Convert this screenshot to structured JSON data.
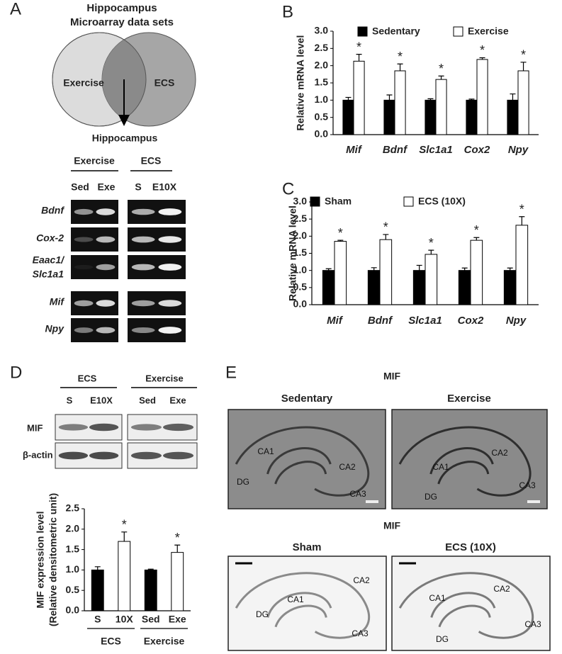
{
  "panel_labels": [
    "A",
    "B",
    "C",
    "D",
    "E"
  ],
  "panel_a": {
    "title": [
      "Hippocampus",
      "Microarray data sets"
    ],
    "venn": [
      "Exercise",
      "ECS"
    ],
    "result": "Hippocampus",
    "groups": [
      "Exercise",
      "ECS"
    ],
    "lanes": [
      "Sed",
      "Exe",
      "S",
      "E10X"
    ],
    "genes": [
      "Bdnf",
      "Cox-2",
      [
        "Eaac1/",
        "Slc1a1"
      ],
      "Mif",
      "Npy"
    ]
  },
  "panel_d": {
    "groups": [
      "ECS",
      "Exercise"
    ],
    "lanes": [
      "S",
      "E10X",
      "Sed",
      "Exe"
    ],
    "proteins": [
      "MIF",
      "β-actin"
    ]
  },
  "panel_e": {
    "title_top": "MIF",
    "title_bottom": "MIF",
    "images": [
      {
        "label": "Sedentary",
        "regions": [
          "CA1",
          "CA2",
          "CA3",
          "DG"
        ]
      },
      {
        "label": "Exercise",
        "regions": [
          "CA1",
          "CA2",
          "CA3",
          "DG"
        ]
      },
      {
        "label": "Sham",
        "regions": [
          "CA1",
          "CA2",
          "CA3",
          "DG"
        ]
      },
      {
        "label": "ECS (10X)",
        "regions": [
          "CA1",
          "CA2",
          "CA3",
          "DG"
        ]
      }
    ]
  },
  "chart_data": [
    {
      "type": "bar",
      "ylabel": [
        "Relative mRNA level"
      ],
      "categories": [
        "Mif",
        "Bdnf",
        "Slc1a1",
        "Cox2",
        "Npy"
      ],
      "series": [
        {
          "name": "Sedentary",
          "color": "#000000",
          "values": [
            1.0,
            1.0,
            1.0,
            1.0,
            1.0
          ],
          "errors": [
            0.08,
            0.15,
            0.04,
            0.03,
            0.18
          ]
        },
        {
          "name": "Exercise",
          "color": "#ffffff",
          "values": [
            2.13,
            1.85,
            1.6,
            2.18,
            1.85
          ],
          "errors": [
            0.2,
            0.2,
            0.1,
            0.05,
            0.25
          ],
          "significance": [
            "*",
            "*",
            "*",
            "*",
            "*"
          ]
        }
      ],
      "ylim": [
        0,
        3
      ],
      "yticks": [
        {
          "value": 0,
          "label": "0.0"
        },
        {
          "value": 0.5,
          "label": "0.5"
        },
        {
          "value": 1,
          "label": "1.0"
        },
        {
          "value": 1.5,
          "label": "1.5"
        },
        {
          "value": 2,
          "label": "2.0"
        },
        {
          "value": 2.5,
          "label": "2.5"
        },
        {
          "value": 3,
          "label": "3.0"
        }
      ],
      "legend": "top"
    },
    {
      "type": "bar",
      "ylabel": [
        "Relative mRNA level"
      ],
      "categories": [
        "Mif",
        "Bdnf",
        "Slc1a1",
        "Cox2",
        "Npy"
      ],
      "series": [
        {
          "name": "Sham",
          "color": "#000000",
          "values": [
            1.0,
            1.0,
            1.0,
            1.0,
            1.0
          ],
          "errors": [
            0.05,
            0.08,
            0.15,
            0.07,
            0.07
          ]
        },
        {
          "name": "ECS (10X)",
          "color": "#ffffff",
          "values": [
            1.85,
            1.9,
            1.47,
            1.88,
            2.32
          ],
          "errors": [
            0.03,
            0.15,
            0.12,
            0.08,
            0.25
          ],
          "significance": [
            "*",
            "*",
            "*",
            "*",
            "*"
          ]
        }
      ],
      "ylim": [
        0,
        3
      ],
      "yticks": [
        {
          "value": 0,
          "label": "0.0"
        },
        {
          "value": 0.5,
          "label": "0.5"
        },
        {
          "value": 1,
          "label": "1.0"
        },
        {
          "value": 1.5,
          "label": "1.5"
        },
        {
          "value": 2,
          "label": "2.0"
        },
        {
          "value": 2.5,
          "label": "2.5"
        },
        {
          "value": 3,
          "label": "3.0"
        }
      ],
      "legend": "top left"
    },
    {
      "type": "bar",
      "ylabel": [
        "MIF expression level",
        "(Relative densitometric unit)"
      ],
      "categories": [
        "S",
        "10X",
        "Sed",
        "Exe"
      ],
      "groups": [
        "ECS",
        "Exercise"
      ],
      "values": [
        1.0,
        1.7,
        1.0,
        1.43
      ],
      "errors": [
        0.08,
        0.23,
        0.02,
        0.18
      ],
      "colors": [
        "#000000",
        "#ffffff",
        "#000000",
        "#ffffff"
      ],
      "significance": [
        null,
        "*",
        null,
        "*"
      ],
      "ylim": [
        0,
        2.5
      ],
      "yticks": [
        {
          "value": 0,
          "label": "0.0"
        },
        {
          "value": 0.5,
          "label": "0.5"
        },
        {
          "value": 1,
          "label": "1.0"
        },
        {
          "value": 1.5,
          "label": "1.5"
        },
        {
          "value": 2,
          "label": "2.0"
        },
        {
          "value": 2.5,
          "label": "2.5"
        }
      ]
    }
  ]
}
